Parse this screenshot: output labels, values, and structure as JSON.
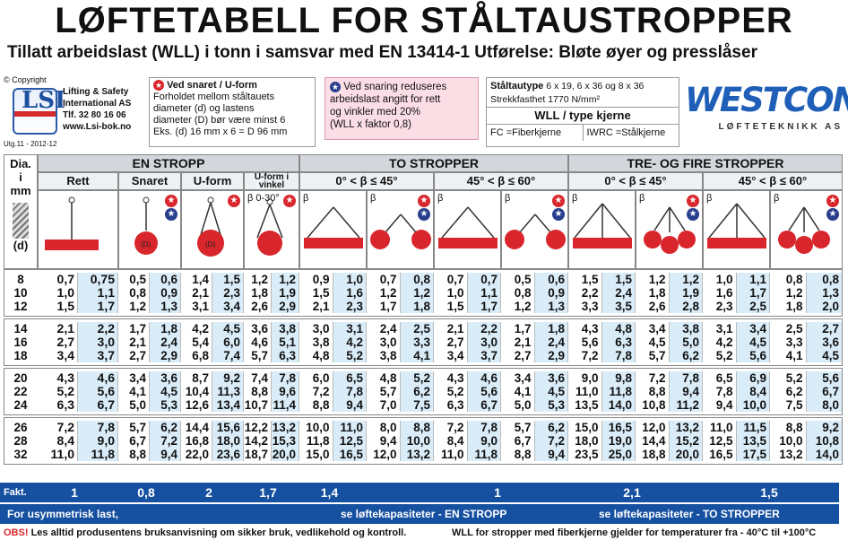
{
  "title": "LØFTETABELL FOR STÅLTAUSTROPPER",
  "subtitle": "Tillatt arbeidslast (WLL) i tonn i samsvar med EN 13414-1 Utførelse: Bløte øyer og presslåser",
  "lsi": {
    "copyright": "© Copyright",
    "company1": "Lifting & Safety",
    "company2": "International AS",
    "phone": "Tlf.  32 80 16 06",
    "web": "www.Lsi-bok.no",
    "edition": "Utg.11 - 2012-12",
    "logo_text": "LSI"
  },
  "box1": {
    "head": "Ved snaret / U-form",
    "line1": "Forholdet mellom ståltauets",
    "line2": "diameter (d) og lastens",
    "line3": "diameter (D) bør være minst 6",
    "line4": "Eks. (d) 16 mm x 6 = D 96 mm"
  },
  "box2": {
    "line1": "Ved snaring reduseres",
    "line2": "arbeidslast angitt for rett",
    "line3": "og vinkler med 20%",
    "line4": "(WLL x faktor 0,8)"
  },
  "box3": {
    "type_label": "Ståltautype",
    "type_value": "6 x 19, 6 x 36 og 8 x 36",
    "strength": "Strekkfasthet 1770 N/mm²",
    "wll": "WLL / type kjerne",
    "fc": "FC =Fiberkjerne",
    "iwrc": "IWRC =Stålkjerne"
  },
  "westcon": {
    "name": "WESTCON",
    "tag": "LØFTETEKNIKK AS"
  },
  "table": {
    "dia_label": "Dia. i mm",
    "d_label": "(d)",
    "sections": [
      "EN STROPP",
      "TO STROPPER",
      "TRE- OG FIRE STROPPER"
    ],
    "en_cols": [
      "Rett",
      "Snaret",
      "U-form",
      "U-form i vinkel"
    ],
    "to_cols": [
      "0° < β ≤ 45°",
      "45° < β ≤ 60°"
    ],
    "tre_cols": [
      "0° < β ≤ 45°",
      "45° < β ≤ 60°"
    ],
    "uform_note": "β 0-30°",
    "beta": "β",
    "rows": [
      {
        "d": "8",
        "v": [
          "0,7",
          "0,75",
          "0,5",
          "0,6",
          "1,4",
          "1,5",
          "1,2",
          "1,2",
          "0,9",
          "1,0",
          "0,7",
          "0,8",
          "0,7",
          "0,7",
          "0,5",
          "0,6",
          "1,5",
          "1,5",
          "1,2",
          "1,2",
          "1,0",
          "1,1",
          "0,8",
          "0,8"
        ]
      },
      {
        "d": "10",
        "v": [
          "1,0",
          "1,1",
          "0,8",
          "0,9",
          "2,1",
          "2,3",
          "1,8",
          "1,9",
          "1,5",
          "1,6",
          "1,2",
          "1,2",
          "1,0",
          "1,1",
          "0,8",
          "0,9",
          "2,2",
          "2,4",
          "1,8",
          "1,9",
          "1,6",
          "1,7",
          "1,2",
          "1,3"
        ]
      },
      {
        "d": "12",
        "v": [
          "1,5",
          "1,7",
          "1,2",
          "1,3",
          "3,1",
          "3,4",
          "2,6",
          "2,9",
          "2,1",
          "2,3",
          "1,7",
          "1,8",
          "1,5",
          "1,7",
          "1,2",
          "1,3",
          "3,3",
          "3,5",
          "2,6",
          "2,8",
          "2,3",
          "2,5",
          "1,8",
          "2,0"
        ]
      },
      {
        "d": "14",
        "v": [
          "2,1",
          "2,2",
          "1,7",
          "1,8",
          "4,2",
          "4,5",
          "3,6",
          "3,8",
          "3,0",
          "3,1",
          "2,4",
          "2,5",
          "2,1",
          "2,2",
          "1,7",
          "1,8",
          "4,3",
          "4,8",
          "3,4",
          "3,8",
          "3,1",
          "3,4",
          "2,5",
          "2,7"
        ]
      },
      {
        "d": "16",
        "v": [
          "2,7",
          "3,0",
          "2,1",
          "2,4",
          "5,4",
          "6,0",
          "4,6",
          "5,1",
          "3,8",
          "4,2",
          "3,0",
          "3,3",
          "2,7",
          "3,0",
          "2,1",
          "2,4",
          "5,6",
          "6,3",
          "4,5",
          "5,0",
          "4,2",
          "4,5",
          "3,3",
          "3,6"
        ]
      },
      {
        "d": "18",
        "v": [
          "3,4",
          "3,7",
          "2,7",
          "2,9",
          "6,8",
          "7,4",
          "5,7",
          "6,3",
          "4,8",
          "5,2",
          "3,8",
          "4,1",
          "3,4",
          "3,7",
          "2,7",
          "2,9",
          "7,2",
          "7,8",
          "5,7",
          "6,2",
          "5,2",
          "5,6",
          "4,1",
          "4,5"
        ]
      },
      {
        "d": "20",
        "v": [
          "4,3",
          "4,6",
          "3,4",
          "3,6",
          "8,7",
          "9,2",
          "7,4",
          "7,8",
          "6,0",
          "6,5",
          "4,8",
          "5,2",
          "4,3",
          "4,6",
          "3,4",
          "3,6",
          "9,0",
          "9,8",
          "7,2",
          "7,8",
          "6,5",
          "6,9",
          "5,2",
          "5,6"
        ]
      },
      {
        "d": "22",
        "v": [
          "5,2",
          "5,6",
          "4,1",
          "4,5",
          "10,4",
          "11,3",
          "8,8",
          "9,6",
          "7,2",
          "7,8",
          "5,7",
          "6,2",
          "5,2",
          "5,6",
          "4,1",
          "4,5",
          "11,0",
          "11,8",
          "8,8",
          "9,4",
          "7,8",
          "8,4",
          "6,2",
          "6,7"
        ]
      },
      {
        "d": "24",
        "v": [
          "6,3",
          "6,7",
          "5,0",
          "5,3",
          "12,6",
          "13,4",
          "10,7",
          "11,4",
          "8,8",
          "9,4",
          "7,0",
          "7,5",
          "6,3",
          "6,7",
          "5,0",
          "5,3",
          "13,5",
          "14,0",
          "10,8",
          "11,2",
          "9,4",
          "10,0",
          "7,5",
          "8,0"
        ]
      },
      {
        "d": "26",
        "v": [
          "7,2",
          "7,8",
          "5,7",
          "6,2",
          "14,4",
          "15,6",
          "12,2",
          "13,2",
          "10,0",
          "11,0",
          "8,0",
          "8,8",
          "7,2",
          "7,8",
          "5,7",
          "6,2",
          "15,0",
          "16,5",
          "12,0",
          "13,2",
          "11,0",
          "11,5",
          "8,8",
          "9,2"
        ]
      },
      {
        "d": "28",
        "v": [
          "8,4",
          "9,0",
          "6,7",
          "7,2",
          "16,8",
          "18,0",
          "14,2",
          "15,3",
          "11,8",
          "12,5",
          "9,4",
          "10,0",
          "8,4",
          "9,0",
          "6,7",
          "7,2",
          "18,0",
          "19,0",
          "14,4",
          "15,2",
          "12,5",
          "13,5",
          "10,0",
          "10,8"
        ]
      },
      {
        "d": "32",
        "v": [
          "11,0",
          "11,8",
          "8,8",
          "9,4",
          "22,0",
          "23,6",
          "18,7",
          "20,0",
          "15,0",
          "16,5",
          "12,0",
          "13,2",
          "11,0",
          "11,8",
          "8,8",
          "9,4",
          "23,5",
          "25,0",
          "18,8",
          "20,0",
          "16,5",
          "17,5",
          "13,2",
          "14,0"
        ]
      }
    ]
  },
  "fakt": {
    "label": "Fakt.",
    "values": [
      "1",
      "0,8",
      "2",
      "1,7",
      "1,4",
      "1",
      "2,1",
      "1,5"
    ]
  },
  "asym": {
    "left": "For usymmetrisk last,",
    "mid": "se løftekapasiteter - EN STROPP",
    "right": "se løftekapasiteter - TO STROPPER"
  },
  "footer": {
    "obs": "OBS!",
    "text": "Les alltid produsentens bruksanvisning om sikker bruk, vedlikehold og kontroll.",
    "right": "WLL for stropper med fiberkjerne gjelder for temperaturer fra - 40°C til +100°C"
  },
  "colors": {
    "red": "#d8262c",
    "blue": "#1650a0",
    "cell_blue": "#d9ecf8"
  }
}
